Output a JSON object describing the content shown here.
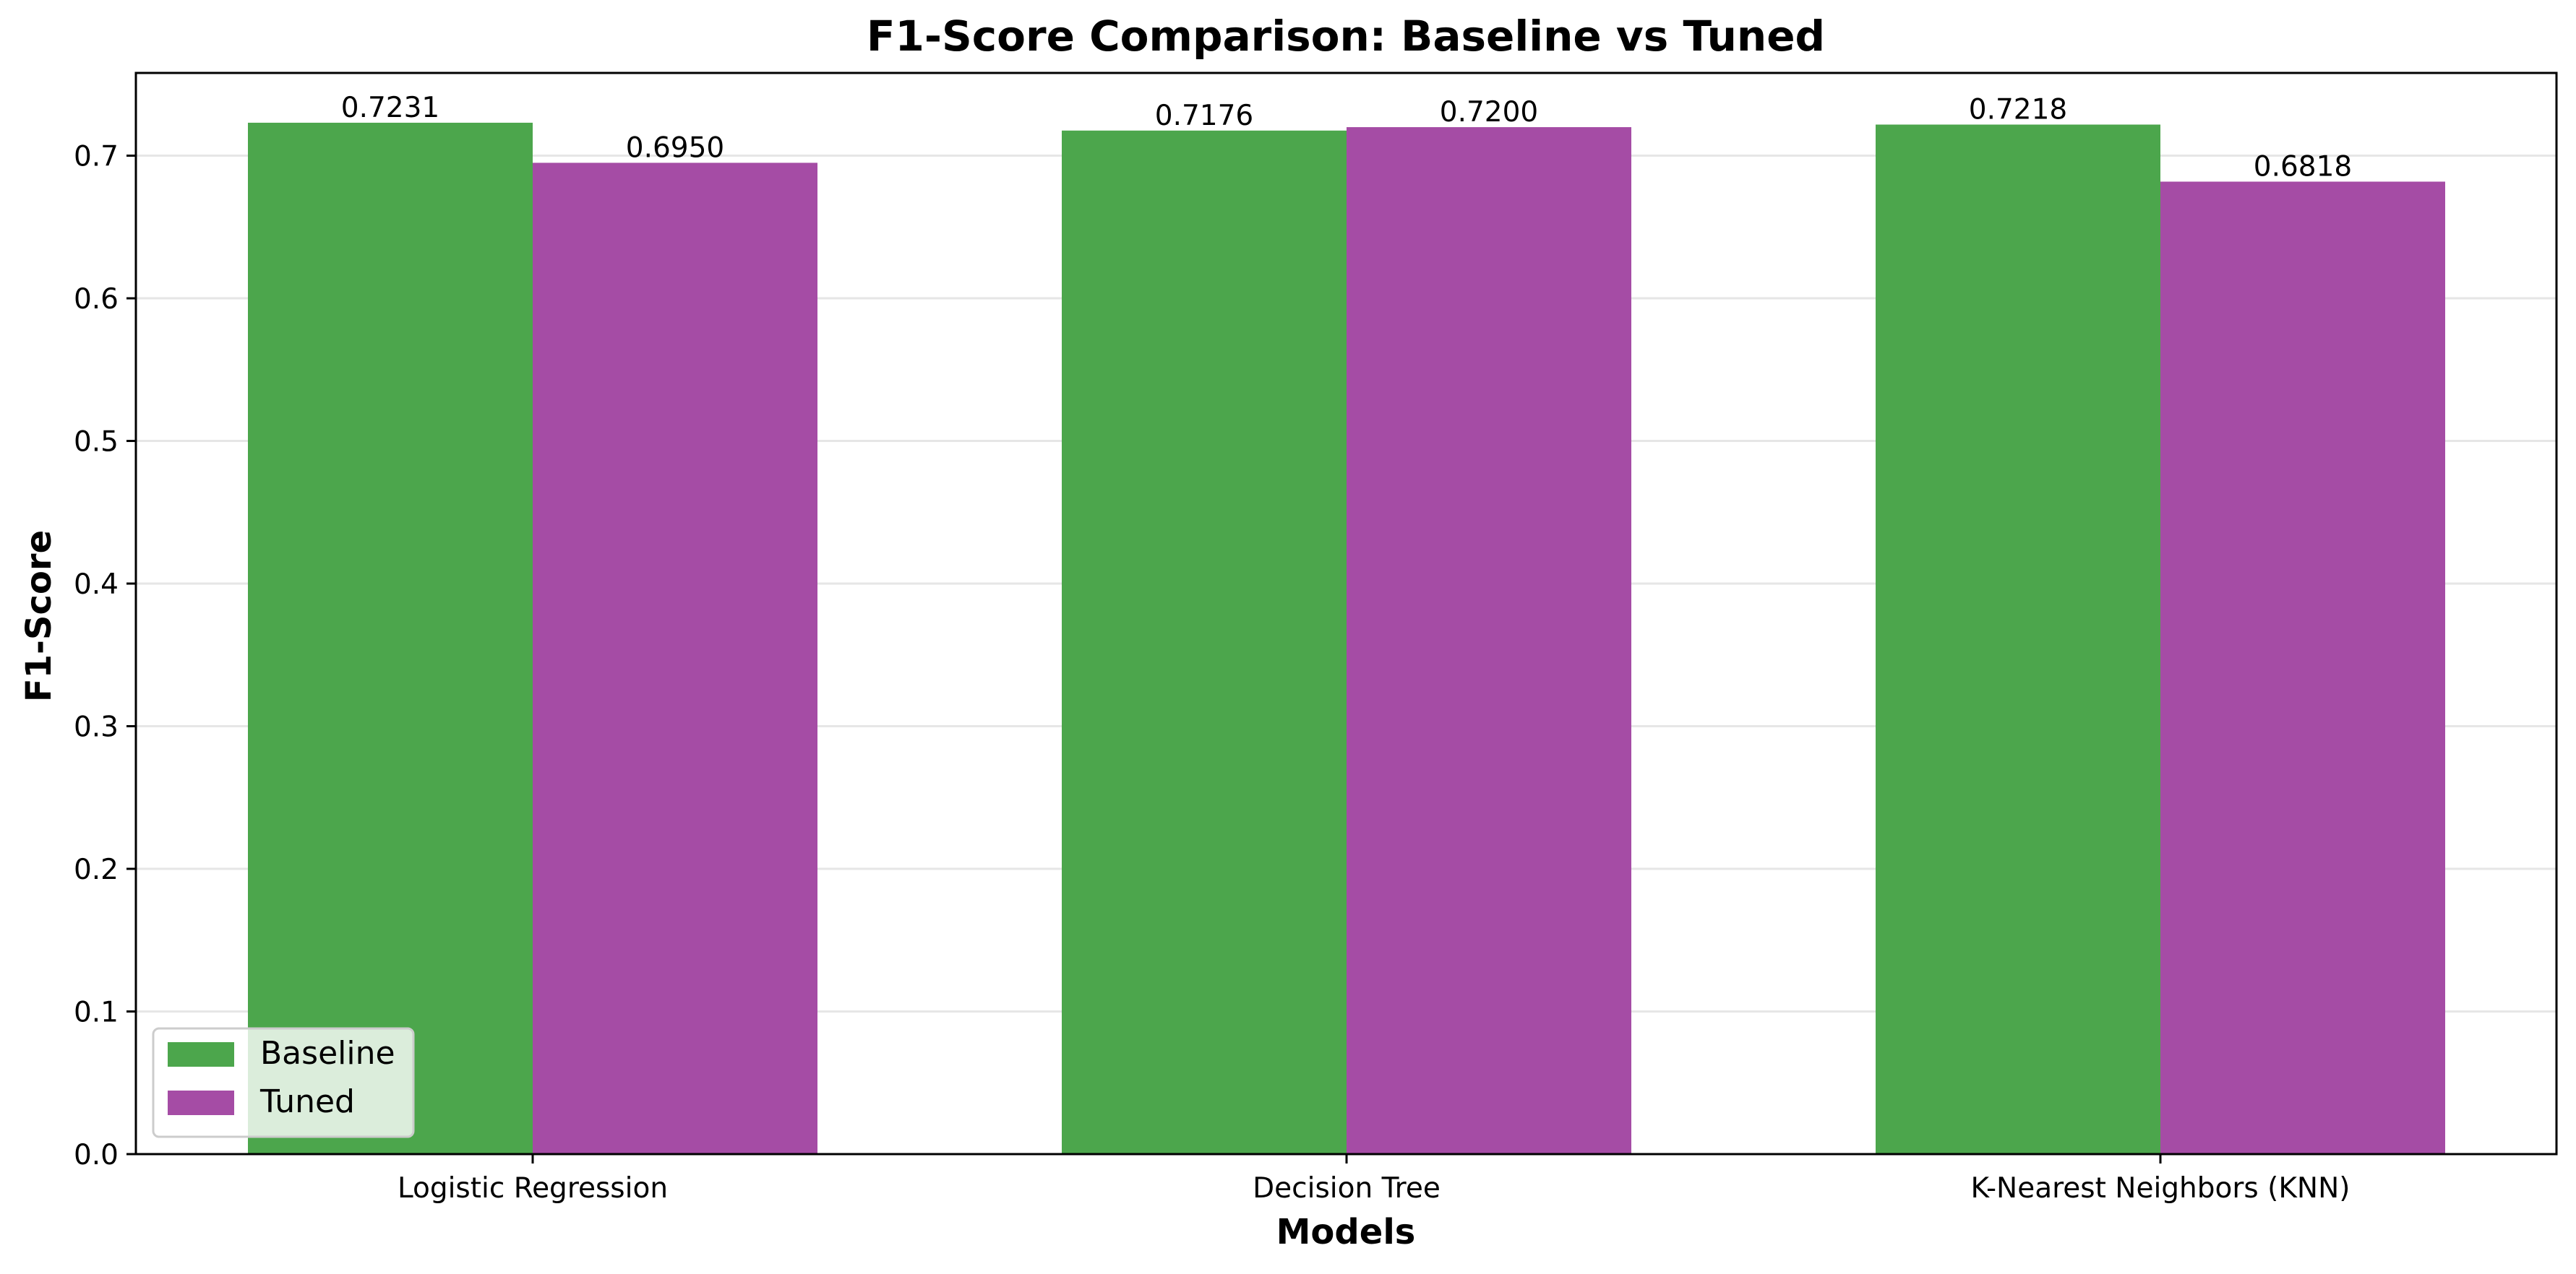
{
  "chart_data": {
    "type": "bar",
    "title": "F1-Score Comparison: Baseline vs Tuned",
    "xlabel": "Models",
    "ylabel": "F1-Score",
    "categories": [
      "Logistic Regression",
      "Decision Tree",
      "K-Nearest Neighbors (KNN)"
    ],
    "series": [
      {
        "name": "Baseline",
        "color": "#4ca64c",
        "values": [
          0.7231,
          0.7176,
          0.7218
        ],
        "value_labels": [
          "0.7231",
          "0.7176",
          "0.7218"
        ]
      },
      {
        "name": "Tuned",
        "color": "#a54ca5",
        "values": [
          0.695,
          0.72,
          0.6818
        ],
        "value_labels": [
          "0.6950",
          "0.7200",
          "0.6818"
        ]
      }
    ],
    "ylim": [
      0,
      0.758
    ],
    "yticks": [
      0.0,
      0.1,
      0.2,
      0.3,
      0.4,
      0.5,
      0.6,
      0.7
    ],
    "ytick_labels": [
      "0.0",
      "0.1",
      "0.2",
      "0.3",
      "0.4",
      "0.5",
      "0.6",
      "0.7"
    ],
    "grid": "y-axis, light gray",
    "legend_position": "lower-left"
  }
}
